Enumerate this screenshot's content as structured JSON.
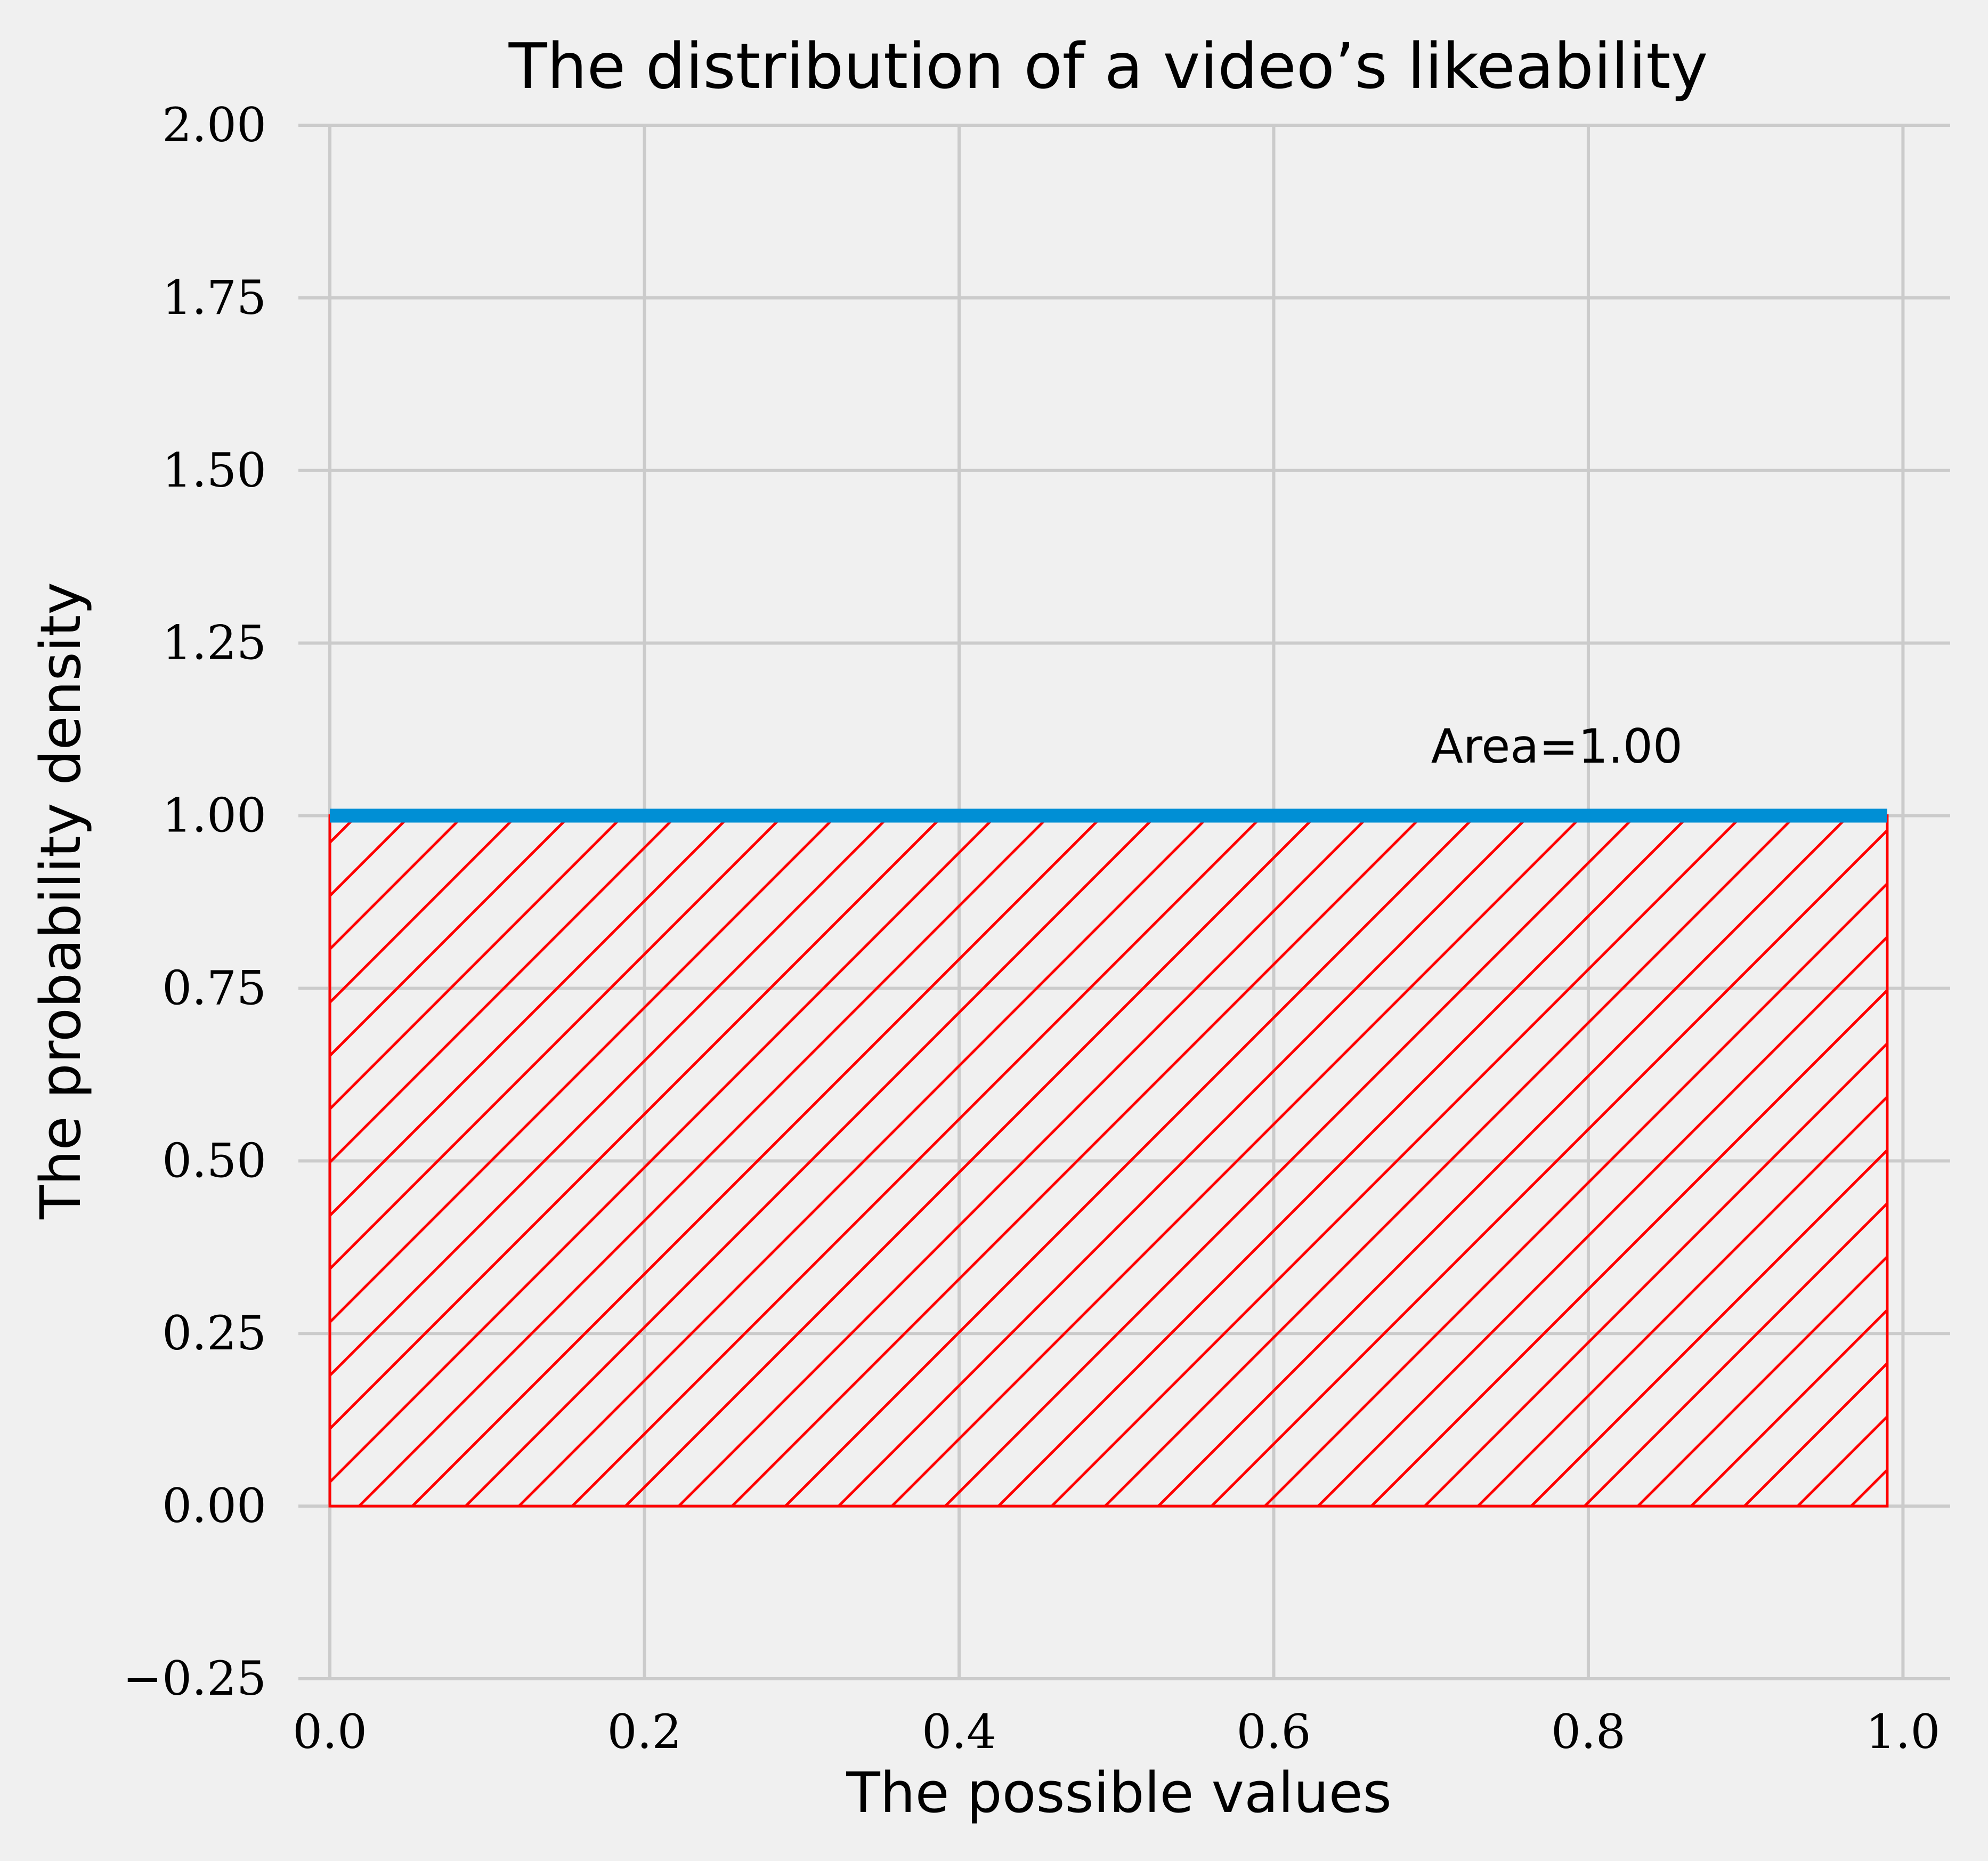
{
  "chart_data": {
    "type": "area",
    "title": "The distribution of a video’s likeability",
    "xlabel": "The possible values",
    "ylabel": "The probability density",
    "xlim": [
      -0.02,
      1.03
    ],
    "ylim": [
      -0.25,
      2.0
    ],
    "xticks": [
      0.0,
      0.2,
      0.4,
      0.6,
      0.8,
      1.0
    ],
    "xtick_labels": [
      "0.0",
      "0.2",
      "0.4",
      "0.6",
      "0.8",
      "1.0"
    ],
    "yticks": [
      -0.25,
      0.0,
      0.25,
      0.5,
      0.75,
      1.0,
      1.25,
      1.5,
      1.75,
      2.0
    ],
    "ytick_labels": [
      "−0.25",
      "0.00",
      "0.25",
      "0.50",
      "0.75",
      "1.00",
      "1.25",
      "1.50",
      "1.75",
      "2.00"
    ],
    "grid": true,
    "series": [
      {
        "x": [
          0.0,
          0.99
        ],
        "y": [
          1.0,
          1.0
        ],
        "color": "#008fd5"
      }
    ],
    "shaded_region": {
      "x_range": [
        0.0,
        0.99
      ],
      "y_range": [
        0.0,
        1.0
      ],
      "hatch": "diagonal",
      "edge_color": "#ff0000"
    },
    "annotation": {
      "text": "Area=1.00",
      "x": 0.7,
      "y": 1.1
    }
  }
}
